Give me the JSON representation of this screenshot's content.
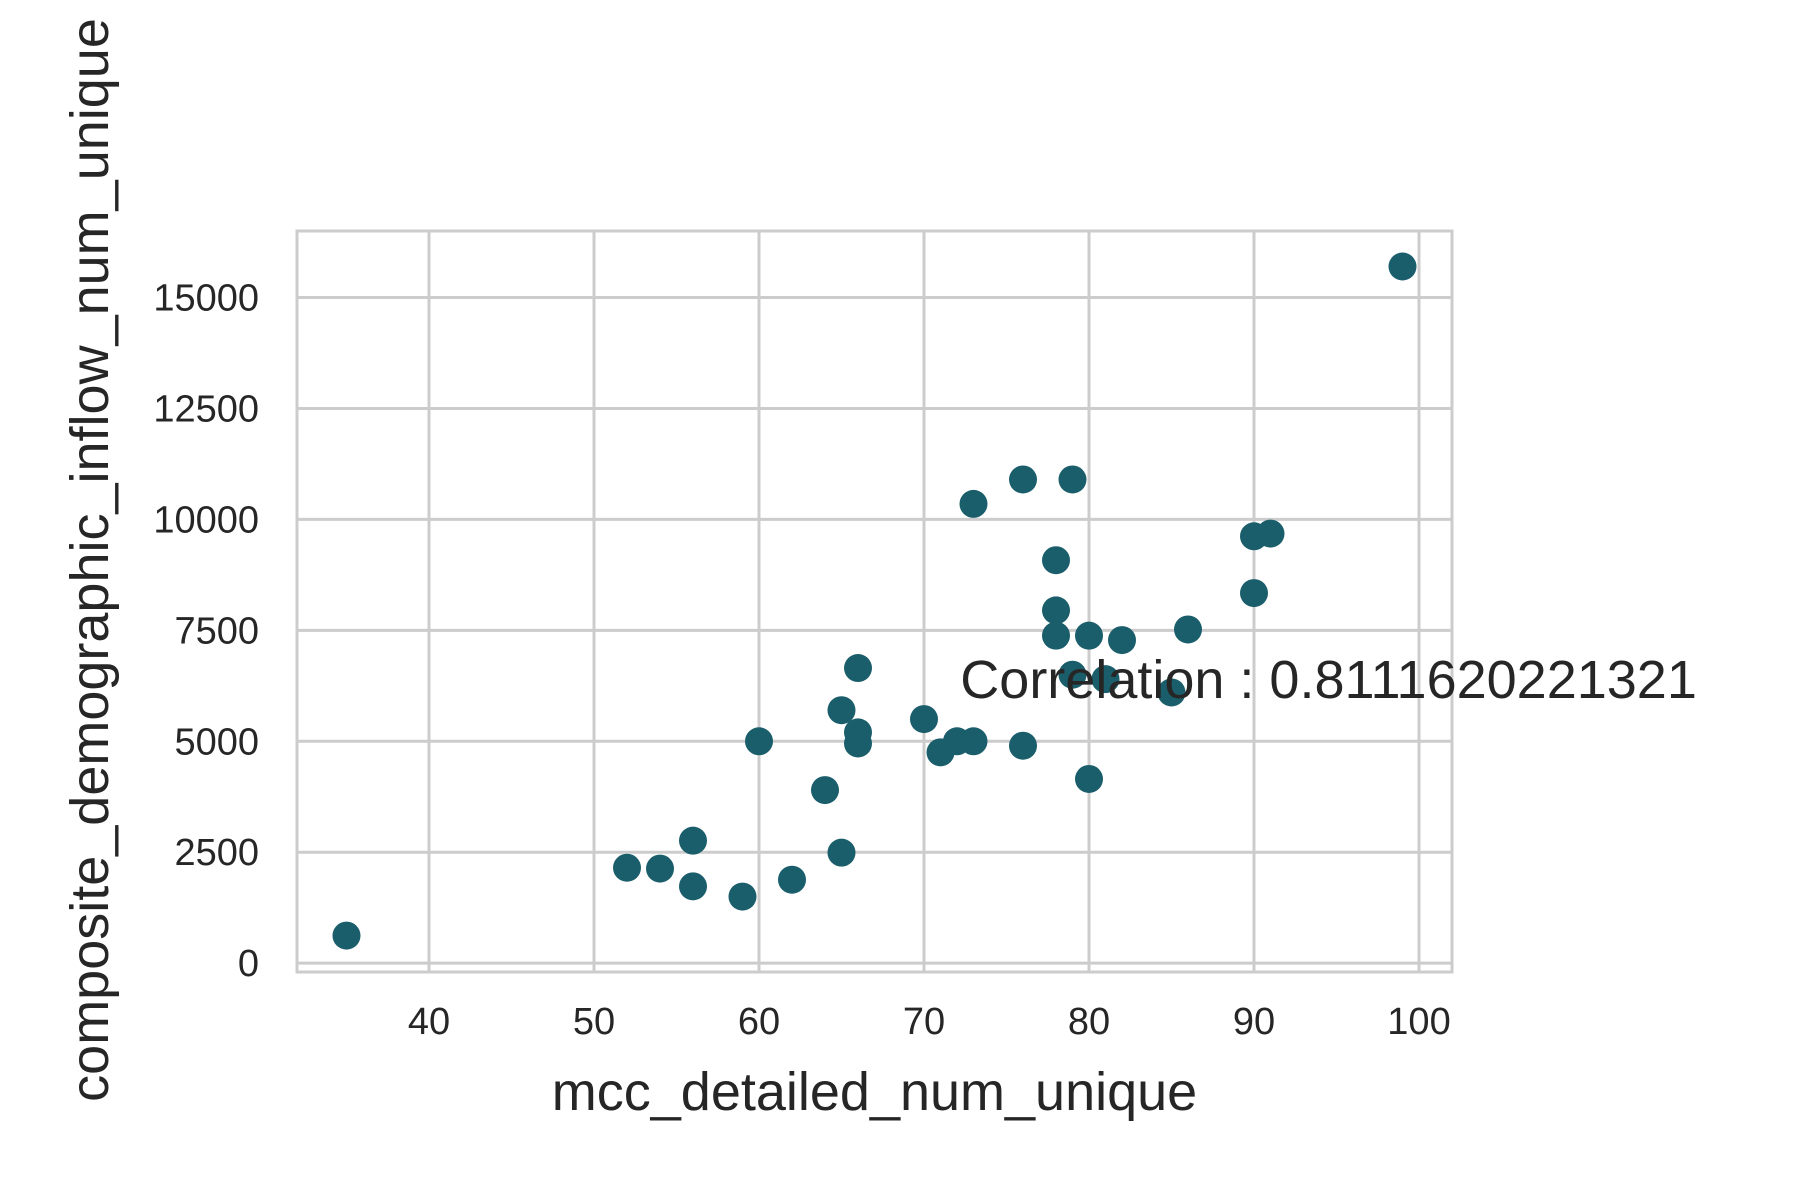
{
  "chart_data": {
    "type": "scatter",
    "title": "",
    "xlabel": "mcc_detailed_num_unique",
    "ylabel": "composite_demographic_inflow_num_unique",
    "xlim": [
      32,
      102
    ],
    "ylim": [
      -200,
      16500
    ],
    "xticks": [
      40,
      50,
      60,
      70,
      80,
      90,
      100
    ],
    "yticks": [
      0,
      2500,
      5000,
      7500,
      10000,
      12500,
      15000
    ],
    "grid": true,
    "point_color": "#1b5e6b",
    "annotation": {
      "text": "Correlation : 0.8111620221321",
      "x": 72.2,
      "y": 6400
    },
    "points": [
      {
        "x": 35,
        "y": 620
      },
      {
        "x": 52,
        "y": 2150
      },
      {
        "x": 54,
        "y": 2130
      },
      {
        "x": 56,
        "y": 2760
      },
      {
        "x": 56,
        "y": 1730
      },
      {
        "x": 59,
        "y": 1500
      },
      {
        "x": 60,
        "y": 5000
      },
      {
        "x": 62,
        "y": 1880
      },
      {
        "x": 64,
        "y": 3900
      },
      {
        "x": 65,
        "y": 5700
      },
      {
        "x": 65,
        "y": 2490
      },
      {
        "x": 66,
        "y": 6650
      },
      {
        "x": 66,
        "y": 5200
      },
      {
        "x": 66,
        "y": 4950
      },
      {
        "x": 70,
        "y": 5500
      },
      {
        "x": 71,
        "y": 4750
      },
      {
        "x": 72,
        "y": 5000
      },
      {
        "x": 73,
        "y": 5000
      },
      {
        "x": 73,
        "y": 10350
      },
      {
        "x": 76,
        "y": 10900
      },
      {
        "x": 76,
        "y": 4900
      },
      {
        "x": 78,
        "y": 9080
      },
      {
        "x": 78,
        "y": 7950
      },
      {
        "x": 78,
        "y": 7380
      },
      {
        "x": 79,
        "y": 10900
      },
      {
        "x": 79,
        "y": 6500
      },
      {
        "x": 80,
        "y": 7380
      },
      {
        "x": 80,
        "y": 4150
      },
      {
        "x": 81,
        "y": 6400
      },
      {
        "x": 82,
        "y": 7280
      },
      {
        "x": 85,
        "y": 6100
      },
      {
        "x": 86,
        "y": 7520
      },
      {
        "x": 90,
        "y": 9620
      },
      {
        "x": 90,
        "y": 8340
      },
      {
        "x": 91,
        "y": 9680
      },
      {
        "x": 99,
        "y": 15700
      }
    ]
  }
}
